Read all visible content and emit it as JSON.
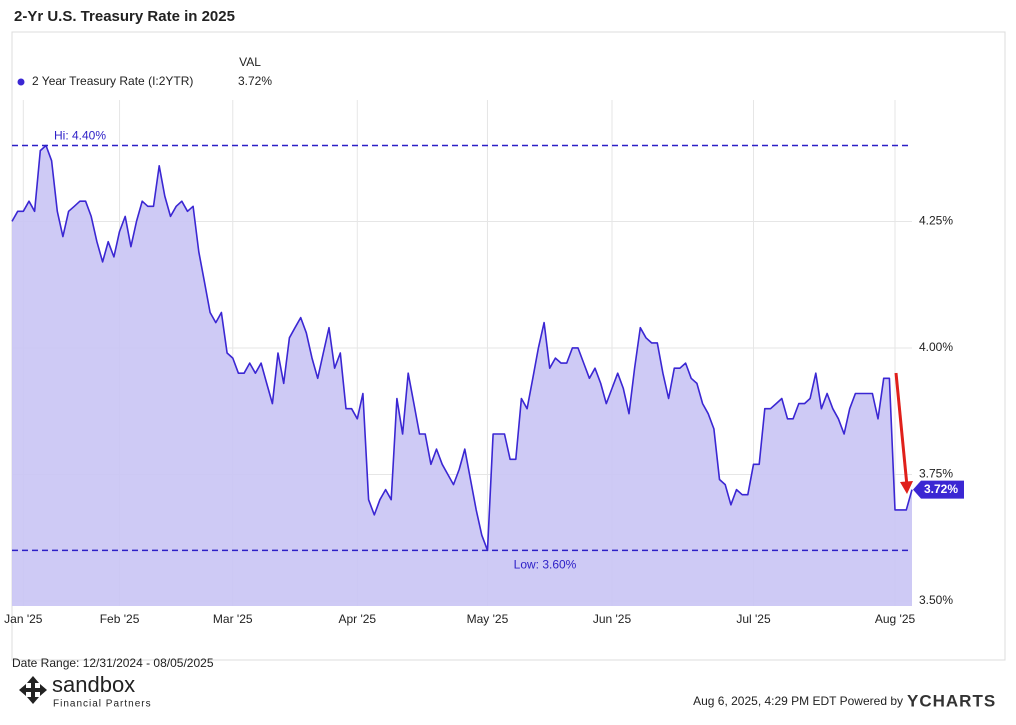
{
  "chart_data": {
    "type": "area",
    "title": "2-Yr U.S. Treasury Rate in 2025",
    "legend_header": "VAL",
    "date_range": "Date Range: 12/31/2024 - 08/05/2025",
    "footer": "Aug 6, 2025, 4:29 PM EDT Powered by",
    "brand": "YCHARTS",
    "logo": {
      "name": "sandbox",
      "tagline": "Financial Partners"
    },
    "categories": [
      null,
      null,
      "Jan '25",
      null,
      null,
      null,
      null,
      null,
      null,
      null,
      null,
      null,
      null,
      null,
      null,
      null,
      null,
      null,
      null,
      "Feb '25",
      null,
      null,
      null,
      null,
      null,
      null,
      null,
      null,
      null,
      null,
      null,
      null,
      null,
      null,
      null,
      null,
      null,
      null,
      null,
      "Mar '25",
      null,
      null,
      null,
      null,
      null,
      null,
      null,
      null,
      null,
      null,
      null,
      null,
      null,
      null,
      null,
      null,
      null,
      null,
      null,
      null,
      null,
      "Apr '25",
      null,
      null,
      null,
      null,
      null,
      null,
      null,
      null,
      null,
      null,
      null,
      null,
      null,
      null,
      null,
      null,
      null,
      null,
      null,
      null,
      null,
      null,
      "May '25",
      null,
      null,
      null,
      null,
      null,
      null,
      null,
      null,
      null,
      null,
      null,
      null,
      null,
      null,
      null,
      null,
      null,
      null,
      null,
      null,
      null,
      "Jun '25",
      null,
      null,
      null,
      null,
      null,
      null,
      null,
      null,
      null,
      null,
      null,
      null,
      null,
      null,
      null,
      null,
      null,
      null,
      null,
      null,
      null,
      null,
      null,
      null,
      "Jul '25",
      null,
      null,
      null,
      null,
      null,
      null,
      null,
      null,
      null,
      null,
      null,
      null,
      null,
      null,
      null,
      null,
      null,
      null,
      null,
      null,
      null,
      null,
      null,
      null,
      "Aug '25",
      null,
      null,
      null
    ],
    "series": [
      {
        "name": "2 Year Treasury Rate (I:2YTR)",
        "color": "#3b27d3",
        "fill": "#c9c4f4",
        "values": [
          4.25,
          4.27,
          4.27,
          4.29,
          4.27,
          4.39,
          4.4,
          4.37,
          4.27,
          4.22,
          4.27,
          4.28,
          4.29,
          4.29,
          4.26,
          4.21,
          4.17,
          4.21,
          4.18,
          4.23,
          4.26,
          4.2,
          4.25,
          4.29,
          4.28,
          4.28,
          4.36,
          4.3,
          4.26,
          4.28,
          4.29,
          4.27,
          4.28,
          4.19,
          4.13,
          4.07,
          4.05,
          4.07,
          3.99,
          3.98,
          3.95,
          3.95,
          3.97,
          3.95,
          3.97,
          3.93,
          3.89,
          3.99,
          3.93,
          4.02,
          4.04,
          4.06,
          4.03,
          3.98,
          3.94,
          3.99,
          4.04,
          3.96,
          3.99,
          3.88,
          3.88,
          3.86,
          3.91,
          3.7,
          3.67,
          3.7,
          3.72,
          3.7,
          3.9,
          3.83,
          3.95,
          3.89,
          3.83,
          3.83,
          3.77,
          3.8,
          3.77,
          3.75,
          3.73,
          3.76,
          3.8,
          3.74,
          3.68,
          3.63,
          3.6,
          3.83,
          3.83,
          3.83,
          3.78,
          3.78,
          3.9,
          3.88,
          3.94,
          4.0,
          4.05,
          3.96,
          3.98,
          3.97,
          3.97,
          4.0,
          4.0,
          3.97,
          3.94,
          3.96,
          3.93,
          3.89,
          3.92,
          3.95,
          3.92,
          3.87,
          3.96,
          4.04,
          4.02,
          4.01,
          4.01,
          3.95,
          3.9,
          3.96,
          3.96,
          3.97,
          3.94,
          3.93,
          3.89,
          3.87,
          3.84,
          3.74,
          3.73,
          3.69,
          3.72,
          3.71,
          3.71,
          3.77,
          3.77,
          3.88,
          3.88,
          3.89,
          3.9,
          3.86,
          3.86,
          3.89,
          3.89,
          3.9,
          3.95,
          3.88,
          3.91,
          3.88,
          3.86,
          3.83,
          3.88,
          3.91,
          3.91,
          3.91,
          3.91,
          3.86,
          3.94,
          3.94,
          3.68,
          3.68,
          3.68,
          3.72
        ],
        "current": 3.72,
        "current_label": "3.72%"
      }
    ],
    "reference_lines": [
      {
        "label": "Hi: 4.40%",
        "value": 4.4
      },
      {
        "label": "Low: 3.60%",
        "value": 3.6
      }
    ],
    "ylim": [
      3.49,
      4.49
    ],
    "yticks": [
      {
        "value": 3.5,
        "label": "3.50%"
      },
      {
        "value": 3.75,
        "label": "3.75%"
      },
      {
        "value": 4.0,
        "label": "4.00%"
      },
      {
        "value": 4.25,
        "label": "4.25%"
      }
    ],
    "grid": true
  }
}
